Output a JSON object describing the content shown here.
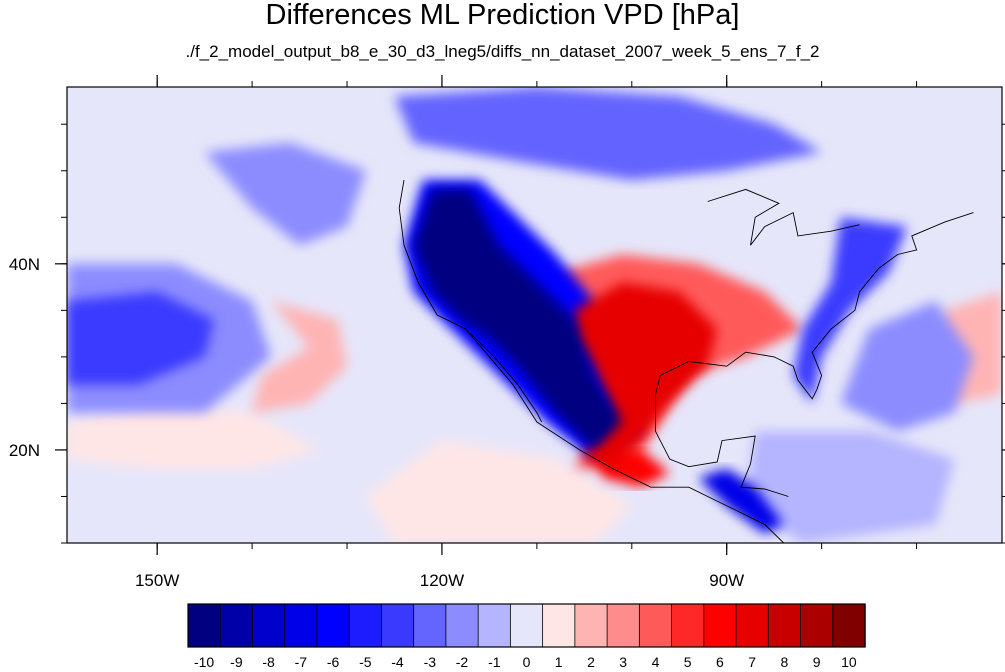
{
  "title": "Differences ML Prediction VPD [hPa]",
  "subtitle": "./f_2_model_output_b8_e_30_d3_lneg5/diffs_nn_dataset_2007_week_5_ens_7_f_2",
  "chart_data": {
    "type": "heatmap",
    "title": "Differences ML Prediction VPD [hPa]",
    "subtitle": "./f_2_model_output_b8_e_30_d3_lneg5/diffs_nn_dataset_2007_week_5_ens_7_f_2",
    "projection": "cylindrical-equidistant",
    "lon_range": [
      -159.5,
      -61
    ],
    "lat_range": [
      10,
      59
    ],
    "x_ticks": [
      {
        "value": -150,
        "label": "150W"
      },
      {
        "value": -120,
        "label": "120W"
      },
      {
        "value": -90,
        "label": "90W"
      }
    ],
    "y_ticks": [
      {
        "value": 40,
        "label": "40N"
      },
      {
        "value": 20,
        "label": "20N"
      }
    ],
    "x_minor_step": 10,
    "y_minor_step": 5,
    "colorbar": {
      "placement": "bottom",
      "labels": [
        "-10",
        "-9",
        "-8",
        "-7",
        "-6",
        "-5",
        "-4",
        "-3",
        "-2",
        "-1",
        "0",
        "1",
        "2",
        "3",
        "4",
        "5",
        "6",
        "7",
        "8",
        "9",
        "10"
      ],
      "colors": [
        "#000080",
        "#0000a8",
        "#0000cd",
        "#0000e8",
        "#0000ff",
        "#1c1cff",
        "#3a3aff",
        "#6464ff",
        "#8c8cff",
        "#b4b4ff",
        "#e6e6fa",
        "#ffe6e6",
        "#ffb4b4",
        "#ff8c8c",
        "#ff5a5a",
        "#ff2828",
        "#ff0000",
        "#e60000",
        "#c80000",
        "#aa0000",
        "#800000"
      ]
    },
    "field_background": "#e6e6fa",
    "regions": [
      {
        "name": "western-us-mexico-negative",
        "level": -10,
        "polygon": [
          [
            -121,
            48
          ],
          [
            -117,
            48
          ],
          [
            -114,
            42
          ],
          [
            -110,
            38
          ],
          [
            -106,
            34
          ],
          [
            -104,
            28
          ],
          [
            -101,
            23
          ],
          [
            -104,
            20
          ],
          [
            -108,
            24
          ],
          [
            -112,
            29
          ],
          [
            -115,
            32
          ],
          [
            -118,
            34
          ],
          [
            -121,
            37
          ],
          [
            -123,
            42
          ]
        ]
      },
      {
        "name": "western-us-moderate-negative",
        "level": -6,
        "polygon": [
          [
            -122,
            49
          ],
          [
            -116,
            49
          ],
          [
            -112,
            45
          ],
          [
            -108,
            41
          ],
          [
            -104,
            36
          ],
          [
            -102,
            30
          ],
          [
            -99,
            22
          ],
          [
            -104,
            19
          ],
          [
            -109,
            23
          ],
          [
            -113,
            27
          ],
          [
            -117,
            31
          ],
          [
            -120,
            34
          ],
          [
            -123,
            37
          ],
          [
            -124,
            42
          ]
        ]
      },
      {
        "name": "gulf-texas-positive",
        "level": 7,
        "polygon": [
          [
            -106,
            35
          ],
          [
            -101,
            38
          ],
          [
            -95,
            37
          ],
          [
            -91,
            33
          ],
          [
            -92,
            29
          ],
          [
            -96,
            25
          ],
          [
            -99,
            21
          ],
          [
            -102,
            18
          ],
          [
            -105,
            19
          ],
          [
            -102,
            24
          ],
          [
            -104,
            29
          ],
          [
            -106,
            32
          ]
        ]
      },
      {
        "name": "southern-plains-positive",
        "level": 4,
        "polygon": [
          [
            -108,
            39
          ],
          [
            -101,
            41
          ],
          [
            -93,
            40
          ],
          [
            -86,
            37
          ],
          [
            -82,
            33
          ],
          [
            -88,
            30
          ],
          [
            -94,
            28
          ],
          [
            -97,
            23
          ],
          [
            -100,
            18
          ],
          [
            -106,
            18
          ],
          [
            -103,
            25
          ],
          [
            -106,
            31
          ],
          [
            -109,
            35
          ]
        ]
      },
      {
        "name": "mexico-southern-positive",
        "level": 6,
        "polygon": [
          [
            -104,
            20
          ],
          [
            -99,
            20
          ],
          [
            -96,
            17.5
          ],
          [
            -99,
            16
          ],
          [
            -103,
            17
          ]
        ]
      },
      {
        "name": "central-america-negative",
        "level": -7,
        "polygon": [
          [
            -93,
            17
          ],
          [
            -90,
            18
          ],
          [
            -87,
            16
          ],
          [
            -84,
            12
          ],
          [
            -86,
            11
          ],
          [
            -90,
            14
          ]
        ]
      },
      {
        "name": "canada-negative",
        "level": -3,
        "polygon": [
          [
            -125,
            58
          ],
          [
            -110,
            59
          ],
          [
            -95,
            58
          ],
          [
            -85,
            55
          ],
          [
            -80,
            52
          ],
          [
            -90,
            50
          ],
          [
            -100,
            49
          ],
          [
            -112,
            51
          ],
          [
            -123,
            53
          ]
        ]
      },
      {
        "name": "east-coast-negative",
        "level": -4,
        "polygon": [
          [
            -78,
            45
          ],
          [
            -71,
            44
          ],
          [
            -73,
            39
          ],
          [
            -77,
            35
          ],
          [
            -80,
            30
          ],
          [
            -81,
            25
          ],
          [
            -83,
            28
          ],
          [
            -82,
            33
          ],
          [
            -79,
            38
          ]
        ]
      },
      {
        "name": "pacific-subtropical-negative",
        "level": -4,
        "polygon": [
          [
            -159.5,
            36
          ],
          [
            -150,
            37
          ],
          [
            -144,
            34
          ],
          [
            -145,
            30
          ],
          [
            -152,
            27
          ],
          [
            -159.5,
            27
          ]
        ]
      },
      {
        "name": "pacific-subtropical-weak-negative",
        "level": -2,
        "polygon": [
          [
            -159.5,
            40
          ],
          [
            -148,
            40
          ],
          [
            -140,
            36
          ],
          [
            -138,
            30
          ],
          [
            -145,
            24
          ],
          [
            -159.5,
            24
          ]
        ]
      },
      {
        "name": "pacific-central-positive",
        "level": 2,
        "polygon": [
          [
            -138,
            36
          ],
          [
            -131,
            34
          ],
          [
            -130,
            29
          ],
          [
            -134,
            25
          ],
          [
            -140,
            24
          ],
          [
            -139,
            28
          ],
          [
            -134,
            31
          ]
        ]
      },
      {
        "name": "pacific-northern-weak-negative",
        "level": -2,
        "polygon": [
          [
            -145,
            52
          ],
          [
            -136,
            53
          ],
          [
            -128,
            50
          ],
          [
            -130,
            44
          ],
          [
            -135,
            42
          ],
          [
            -140,
            46
          ]
        ]
      },
      {
        "name": "pacific-western-weak-positive",
        "level": 1,
        "polygon": [
          [
            -159.5,
            23
          ],
          [
            -150,
            25
          ],
          [
            -140,
            24
          ],
          [
            -133,
            20
          ],
          [
            -140,
            18
          ],
          [
            -150,
            18
          ],
          [
            -159.5,
            19
          ]
        ]
      },
      {
        "name": "atlantic-positive",
        "level": 2,
        "polygon": [
          [
            -67,
            35
          ],
          [
            -61,
            37
          ],
          [
            -61,
            26
          ],
          [
            -66,
            25
          ],
          [
            -70,
            28
          ]
        ]
      },
      {
        "name": "atlantic-negative",
        "level": -2,
        "polygon": [
          [
            -75,
            33
          ],
          [
            -68,
            36
          ],
          [
            -64,
            30
          ],
          [
            -66,
            24
          ],
          [
            -72,
            22
          ],
          [
            -78,
            25
          ]
        ]
      },
      {
        "name": "eastern-pacific-positive",
        "level": 1,
        "polygon": [
          [
            -120,
            21
          ],
          [
            -108,
            19
          ],
          [
            -100,
            14
          ],
          [
            -104,
            10
          ],
          [
            -125,
            10
          ],
          [
            -128,
            15
          ]
        ]
      },
      {
        "name": "caribbean-weak-negative",
        "level": -1,
        "polygon": [
          [
            -87,
            22
          ],
          [
            -75,
            22
          ],
          [
            -66,
            19
          ],
          [
            -68,
            12
          ],
          [
            -82,
            10
          ],
          [
            -88,
            14
          ]
        ]
      }
    ],
    "coastlines": [
      {
        "name": "north-america-west-coast",
        "points": [
          [
            -124,
            49
          ],
          [
            -124.5,
            46
          ],
          [
            -124,
            42
          ],
          [
            -122.5,
            38
          ],
          [
            -120.5,
            34.5
          ],
          [
            -117.5,
            33
          ],
          [
            -115,
            30
          ],
          [
            -112.5,
            27
          ],
          [
            -110,
            23
          ],
          [
            -105.5,
            20
          ],
          [
            -102,
            18
          ],
          [
            -98,
            16
          ],
          [
            -94,
            16
          ],
          [
            -92,
            15
          ],
          [
            -89,
            13.5
          ],
          [
            -86,
            12
          ],
          [
            -84,
            10
          ]
        ]
      },
      {
        "name": "baja-california",
        "points": [
          [
            -117,
            32.5
          ],
          [
            -114.5,
            30
          ],
          [
            -112,
            27
          ],
          [
            -110,
            24
          ],
          [
            -109.5,
            23
          ]
        ]
      },
      {
        "name": "gulf-coast",
        "points": [
          [
            -97.5,
            26
          ],
          [
            -97,
            28
          ],
          [
            -94,
            29.5
          ],
          [
            -90,
            29
          ],
          [
            -88,
            30.5
          ],
          [
            -85,
            30
          ],
          [
            -83,
            29
          ],
          [
            -82.5,
            27.5
          ],
          [
            -81,
            25.5
          ],
          [
            -80.5,
            26.5
          ],
          [
            -80,
            28
          ],
          [
            -81,
            30.5
          ],
          [
            -79,
            33
          ],
          [
            -76.5,
            35
          ],
          [
            -76,
            37
          ],
          [
            -74,
            39.5
          ],
          [
            -72,
            41
          ],
          [
            -70,
            41.5
          ],
          [
            -70.5,
            43
          ],
          [
            -67,
            44.5
          ],
          [
            -64,
            45.5
          ]
        ]
      },
      {
        "name": "mexico-gulf-coast",
        "points": [
          [
            -97.5,
            26
          ],
          [
            -97.5,
            22
          ],
          [
            -96,
            19
          ],
          [
            -94,
            18.2
          ],
          [
            -91,
            18.7
          ],
          [
            -90.5,
            21
          ],
          [
            -87,
            21.5
          ],
          [
            -87.5,
            18.5
          ],
          [
            -88.5,
            16
          ],
          [
            -86,
            15.8
          ],
          [
            -83.5,
            15
          ]
        ]
      },
      {
        "name": "great-lakes",
        "points": [
          [
            -92,
            46.7
          ],
          [
            -88,
            48
          ],
          [
            -84.5,
            46.5
          ],
          [
            -87,
            45
          ],
          [
            -87.5,
            42
          ],
          [
            -86,
            44
          ],
          [
            -83,
            45.5
          ],
          [
            -82.5,
            43
          ],
          [
            -79,
            43.5
          ],
          [
            -76,
            44.2
          ]
        ]
      }
    ]
  }
}
